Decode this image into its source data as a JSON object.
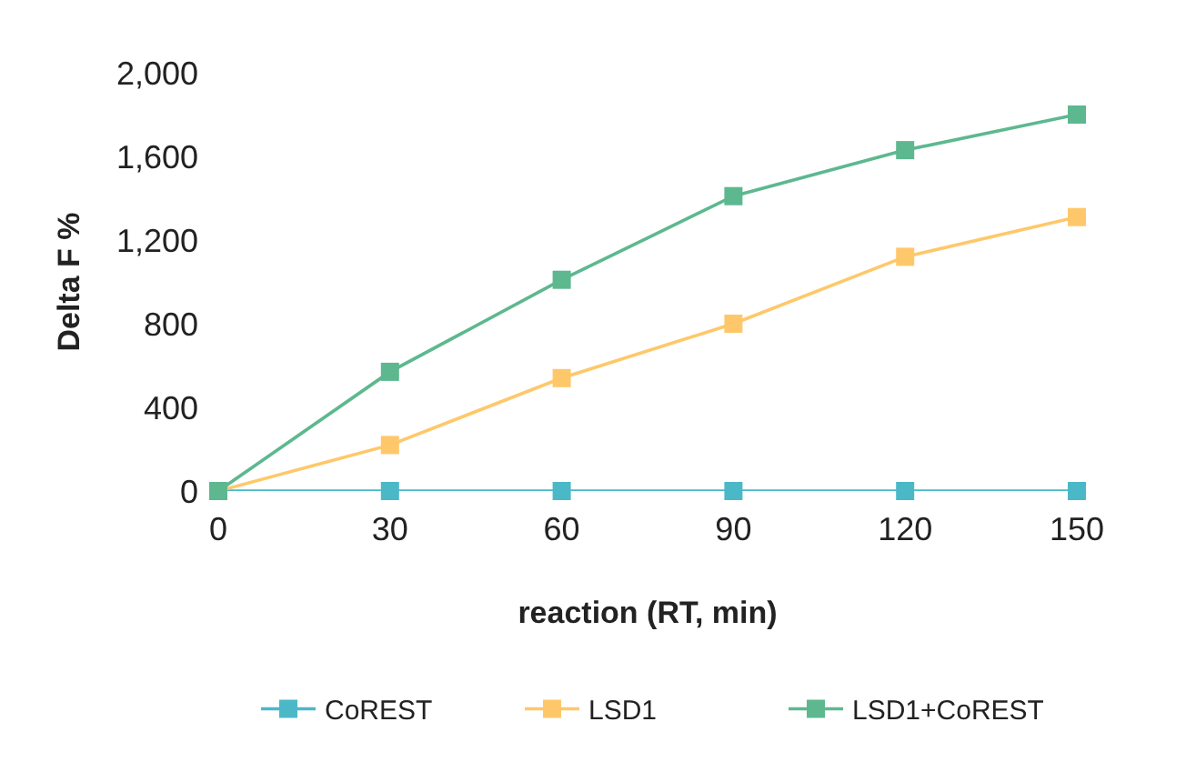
{
  "chart_data": {
    "type": "line",
    "x": [
      0,
      30,
      60,
      90,
      120,
      150
    ],
    "series": [
      {
        "name": "CoREST",
        "color": "#4bb8c8",
        "values": [
          0,
          0,
          0,
          0,
          0,
          0
        ]
      },
      {
        "name": "LSD1",
        "color": "#fec86a",
        "values": [
          0,
          220,
          540,
          800,
          1120,
          1310
        ]
      },
      {
        "name": "LSD1+CoREST",
        "color": "#5db88f",
        "values": [
          0,
          570,
          1010,
          1410,
          1630,
          1800
        ]
      }
    ],
    "xlabel": "reaction (RT, min)",
    "ylabel": "Delta F %",
    "xlim": [
      0,
      150
    ],
    "xticks": [
      0,
      30,
      60,
      90,
      120,
      150
    ],
    "ylim": [
      0,
      2000
    ],
    "yticks": [
      0,
      {
        "value": 400,
        "label": "400"
      },
      {
        "value": 800,
        "label": "800"
      },
      {
        "value": 1200,
        "label": "1,200"
      },
      {
        "value": 1600,
        "label": "1,600"
      },
      {
        "value": 2000,
        "label": "2,000"
      }
    ],
    "legend": "bottom",
    "marker": "square",
    "line_style": "solid"
  }
}
